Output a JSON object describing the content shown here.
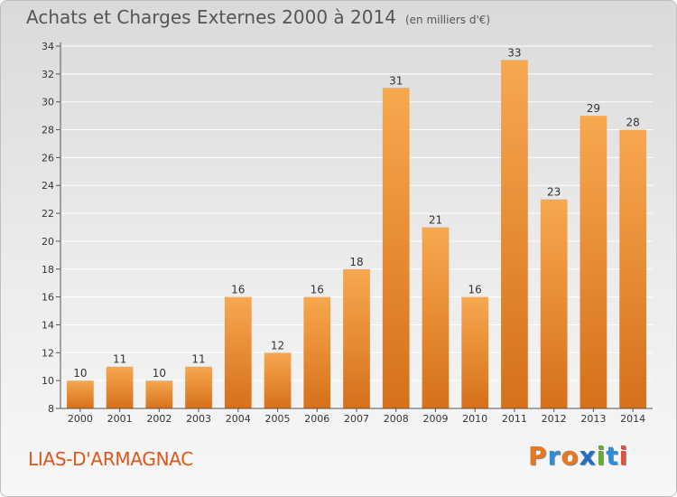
{
  "header": {
    "title": "Achats et Charges Externes 2000 à 2014",
    "unit": "(en milliers d'€)"
  },
  "footer": {
    "city": "LIAS-D'ARMAGNAC",
    "brand": "Proxiti"
  },
  "colors": {
    "bar_light": "#f7a84f",
    "bar_dark": "#d6701b",
    "axis": "#555555",
    "grid": "#ffffff",
    "city_text": "#e0551a",
    "brand_letters": [
      "#e8781e",
      "#2f8fd6",
      "#e8781e",
      "#1f6fc4",
      "#5fae2f",
      "#2f8fd6",
      "#e84b3c"
    ]
  },
  "chart_data": {
    "type": "bar",
    "categories": [
      "2000",
      "2001",
      "2002",
      "2003",
      "2004",
      "2005",
      "2006",
      "2007",
      "2008",
      "2009",
      "2010",
      "2011",
      "2012",
      "2013",
      "2014"
    ],
    "values": [
      10,
      11,
      10,
      11,
      16,
      12,
      16,
      18,
      31,
      21,
      16,
      33,
      23,
      29,
      28
    ],
    "title": "Achats et Charges Externes 2000 à 2014",
    "ylim": [
      8,
      34
    ],
    "yticks": [
      8,
      10,
      12,
      14,
      16,
      18,
      20,
      22,
      24,
      26,
      28,
      30,
      32,
      34
    ],
    "grid": true,
    "data_labels": true
  }
}
